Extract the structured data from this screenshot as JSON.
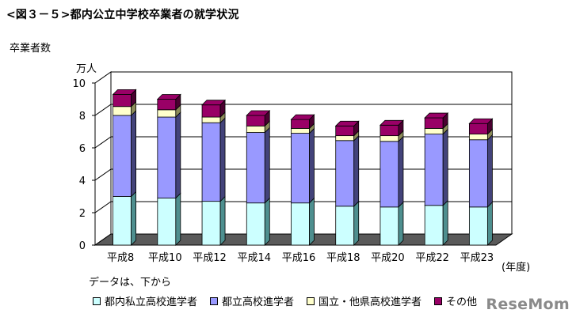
{
  "title": "<図３－５>都内公立中学校卒業者の就学状況",
  "ylabel": "卒業者数",
  "unit": "万人",
  "year_unit": "(年度)",
  "note": "データは、下から",
  "watermark": "ReseMom",
  "chart_data": {
    "type": "bar",
    "stacked": true,
    "three_d": true,
    "categories": [
      "平成8",
      "平成10",
      "平成12",
      "平成14",
      "平成16",
      "平成18",
      "平成20",
      "平成22",
      "平成23"
    ],
    "series": [
      {
        "name": "都内私立高校進学者",
        "color": "#ccffff",
        "side": "#4e8f8f",
        "values": [
          3.0,
          2.9,
          2.7,
          2.6,
          2.6,
          2.4,
          2.35,
          2.45,
          2.35
        ]
      },
      {
        "name": "都立高校進学者",
        "color": "#9999ff",
        "side": "#43437a",
        "values": [
          5.0,
          5.0,
          4.85,
          4.35,
          4.3,
          4.05,
          4.05,
          4.4,
          4.15
        ]
      },
      {
        "name": "国立・他県高校進学者",
        "color": "#ffffcc",
        "side": "#8c8c5a",
        "values": [
          0.55,
          0.45,
          0.35,
          0.4,
          0.3,
          0.3,
          0.35,
          0.35,
          0.35
        ]
      },
      {
        "name": "その他",
        "color": "#990066",
        "side": "#4a0030",
        "values": [
          0.75,
          0.65,
          0.75,
          0.65,
          0.55,
          0.6,
          0.65,
          0.65,
          0.65
        ]
      }
    ],
    "ylim": [
      0,
      10
    ],
    "yticks": [
      0,
      2,
      4,
      6,
      8,
      10
    ],
    "grid": true,
    "legend_position": "bottom"
  }
}
